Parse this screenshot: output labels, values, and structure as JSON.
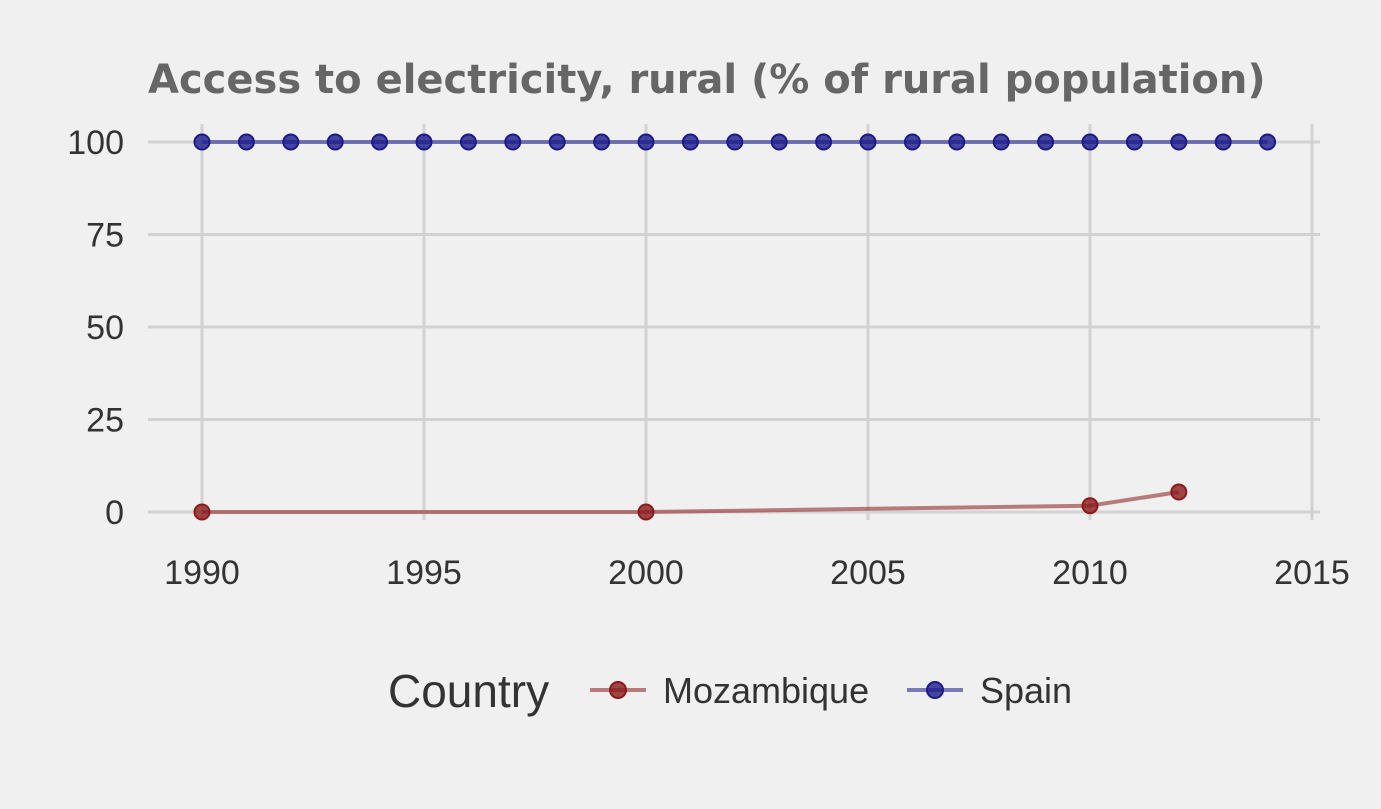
{
  "chart_data": {
    "type": "line",
    "title": "Access to electricity, rural (% of rural population)",
    "xlabel": "",
    "ylabel": "",
    "xlim": [
      1990,
      2015
    ],
    "ylim": [
      0,
      100
    ],
    "x_ticks": [
      1990,
      1995,
      2000,
      2005,
      2010,
      2015
    ],
    "y_ticks": [
      0,
      25,
      50,
      75,
      100
    ],
    "grid": true,
    "legend_title": "Country",
    "legend_position": "bottom",
    "series": [
      {
        "name": "Mozambique",
        "color": "#8b1a1a",
        "x": [
          1990,
          2000,
          2010,
          2012
        ],
        "y": [
          0,
          0,
          1.7,
          5.4
        ]
      },
      {
        "name": "Spain",
        "color": "#1a1a8b",
        "x": [
          1990,
          1991,
          1992,
          1993,
          1994,
          1995,
          1996,
          1997,
          1998,
          1999,
          2000,
          2001,
          2002,
          2003,
          2004,
          2005,
          2006,
          2007,
          2008,
          2009,
          2010,
          2011,
          2012,
          2013,
          2014
        ],
        "y": [
          100,
          100,
          100,
          100,
          100,
          100,
          100,
          100,
          100,
          100,
          100,
          100,
          100,
          100,
          100,
          100,
          100,
          100,
          100,
          100,
          100,
          100,
          100,
          100,
          100
        ]
      }
    ]
  }
}
